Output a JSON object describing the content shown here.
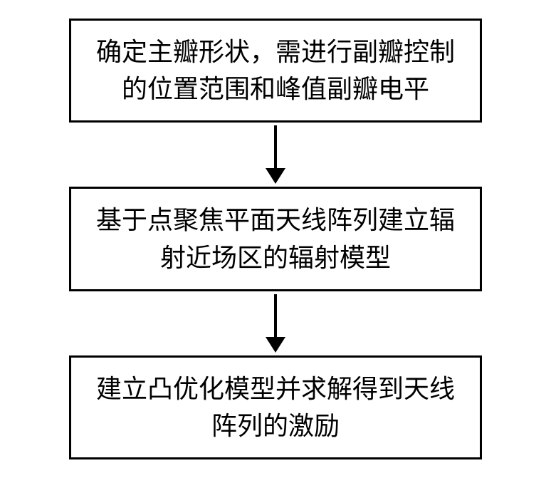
{
  "flowchart": {
    "type": "flowchart",
    "direction": "vertical",
    "background_color": "#ffffff",
    "box_border_color": "#000000",
    "box_border_width": 3,
    "box_background_color": "#ffffff",
    "text_color": "#000000",
    "font_size": 36,
    "font_family": "SimSun",
    "arrow_color": "#000000",
    "arrow_line_width": 4,
    "arrow_head_size": 22,
    "nodes": [
      {
        "id": "node1",
        "text": "确定主瓣形状，需进行副瓣控制的位置范围和峰值副瓣电平"
      },
      {
        "id": "node2",
        "text": "基于点聚焦平面天线阵列建立辐射近场区的辐射模型"
      },
      {
        "id": "node3",
        "text": "建立凸优化模型并求解得到天线阵列的激励"
      }
    ],
    "edges": [
      {
        "from": "node1",
        "to": "node2"
      },
      {
        "from": "node2",
        "to": "node3"
      }
    ]
  }
}
